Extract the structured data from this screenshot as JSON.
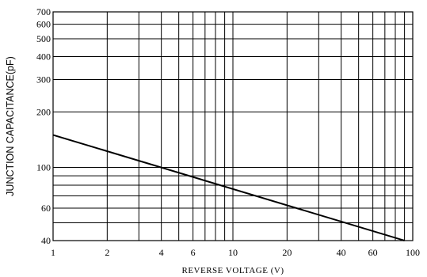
{
  "chart_data": {
    "type": "line",
    "title": "",
    "xlabel": "REVERSE VOLTAGE (V)",
    "ylabel": "JUNCTION CAPACITANCE(pF)",
    "x_scale": "log",
    "y_scale": "log",
    "xlim": [
      1,
      100
    ],
    "ylim": [
      40,
      700
    ],
    "grid": true,
    "x_gridlines": [
      1,
      2,
      3,
      4,
      5,
      6,
      7,
      8,
      9,
      10,
      20,
      30,
      40,
      50,
      60,
      70,
      80,
      90,
      100
    ],
    "y_gridlines": [
      40,
      50,
      60,
      70,
      80,
      90,
      100,
      200,
      300,
      400,
      500,
      600,
      700
    ],
    "x_tick_labels": [
      {
        "value": 1,
        "label": "1"
      },
      {
        "value": 2,
        "label": "2"
      },
      {
        "value": 4,
        "label": "4"
      },
      {
        "value": 6,
        "label": "6"
      },
      {
        "value": 10,
        "label": "10"
      },
      {
        "value": 20,
        "label": "20"
      },
      {
        "value": 40,
        "label": "40"
      },
      {
        "value": 60,
        "label": "60"
      },
      {
        "value": 100,
        "label": "100"
      }
    ],
    "y_tick_labels": [
      {
        "value": 40,
        "label": "40"
      },
      {
        "value": 60,
        "label": "60"
      },
      {
        "value": 100,
        "label": "100"
      },
      {
        "value": 200,
        "label": "200"
      },
      {
        "value": 300,
        "label": "300"
      },
      {
        "value": 400,
        "label": "400"
      },
      {
        "value": 500,
        "label": "500"
      },
      {
        "value": 600,
        "label": "600"
      },
      {
        "value": 700,
        "label": "700"
      }
    ],
    "series": [
      {
        "points": [
          {
            "x": 1,
            "y": 150
          },
          {
            "x": 90,
            "y": 40
          }
        ]
      }
    ]
  }
}
